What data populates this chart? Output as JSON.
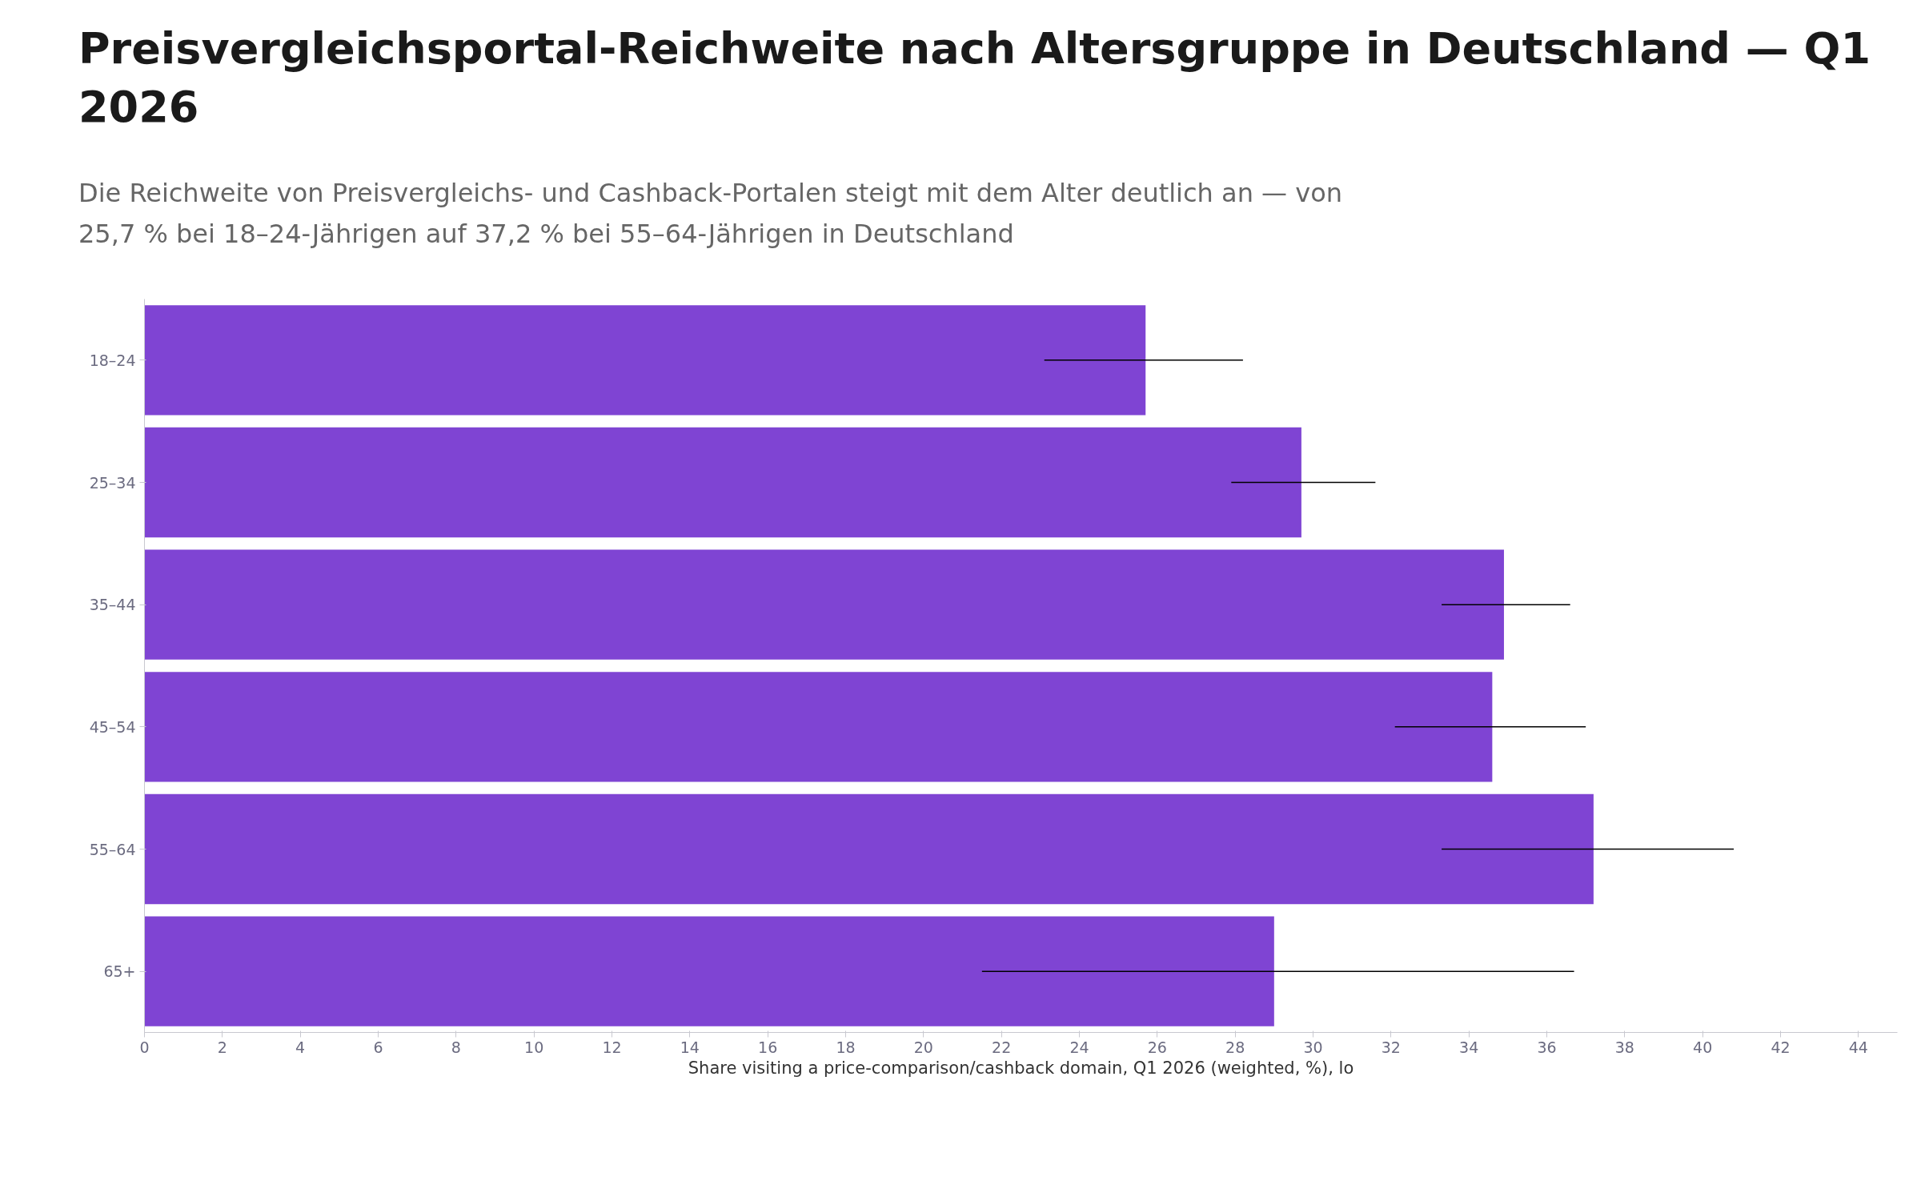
{
  "chart_data": {
    "type": "bar",
    "orientation": "horizontal",
    "title": "Preisvergleichsportal-Reichweite nach Altersgruppe in Deutschland — Q1 2026",
    "subtitle": "Die Reichweite von Preisvergleichs- und Cashback-Portalen steigt mit dem Alter deutlich an — von 25,7 % bei 18–24-Jährigen auf 37,2 % bei 55–64-Jährigen in Deutschland",
    "xlabel": "Share visiting a price-comparison/cashback domain, Q1 2026 (weighted, %), lo",
    "categories": [
      "18–24",
      "25–34",
      "35–44",
      "45–54",
      "55–64",
      "65+"
    ],
    "values": [
      25.7,
      29.7,
      34.9,
      34.6,
      37.2,
      29.0
    ],
    "errors": [
      [
        23.1,
        28.2
      ],
      [
        27.9,
        31.6
      ],
      [
        33.3,
        36.6
      ],
      [
        32.1,
        37.0
      ],
      [
        33.3,
        40.8
      ],
      [
        21.5,
        36.7
      ]
    ],
    "color": "#7f44d3",
    "xlim": [
      0,
      45
    ],
    "xticks": [
      0,
      2,
      4,
      6,
      8,
      10,
      12,
      14,
      16,
      18,
      20,
      22,
      24,
      26,
      28,
      30,
      32,
      34,
      36,
      38,
      40,
      42,
      44
    ],
    "grid": false
  }
}
